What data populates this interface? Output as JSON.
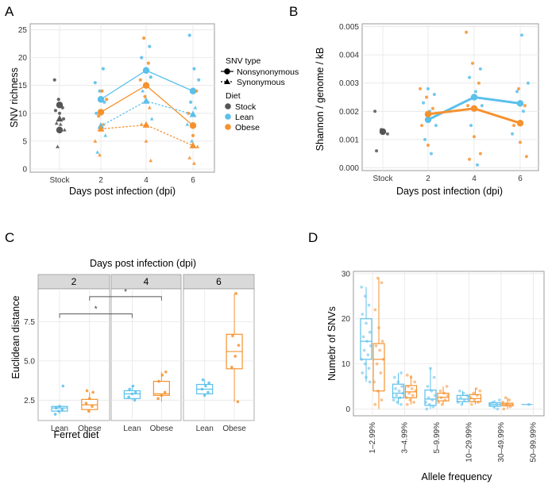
{
  "colors": {
    "stock": "#555555",
    "lean": "#5bc0eb",
    "obese": "#f5922f",
    "panel_bg": "#ffffff",
    "grid": "#e6e6e6",
    "strip_bg": "#d9d9d9"
  },
  "chart_data": [
    {
      "panel_label": "A",
      "type": "line",
      "xlabel": "Days post infection (dpi)",
      "ylabel": "SNV richness",
      "categories": [
        "Stock",
        "2",
        "4",
        "6"
      ],
      "yticks": [
        "0",
        "5",
        "10",
        "15",
        "20",
        "25"
      ],
      "ylim": [
        0,
        25.5
      ],
      "legend": {
        "title1": "SNV type",
        "items1": [
          "Nonsynonymous",
          "Synonymous"
        ],
        "title2": "Diet",
        "items2": [
          "Stock",
          "Lean",
          "Obese"
        ]
      },
      "series": [
        {
          "name": "Stock Nonsynonymous",
          "group": "stock",
          "shape": "circle",
          "values": [
            11.5,
            null,
            null,
            null
          ]
        },
        {
          "name": "Stock Nonsynonymous (2)",
          "group": "stock",
          "shape": "circle",
          "values": [
            7,
            null,
            null,
            null
          ]
        },
        {
          "name": "Stock Synonymous",
          "group": "stock",
          "shape": "triangle",
          "values": [
            9,
            null,
            null,
            null
          ]
        },
        {
          "name": "Lean Nonsynonymous",
          "group": "lean",
          "shape": "circle",
          "values": [
            null,
            12.5,
            17.7,
            14
          ]
        },
        {
          "name": "Obese Nonsynonymous",
          "group": "obese",
          "shape": "circle",
          "values": [
            null,
            10.2,
            15,
            7.8
          ]
        },
        {
          "name": "Lean Synonymous",
          "group": "lean",
          "shape": "triangle",
          "values": [
            null,
            7.7,
            12.2,
            9.8
          ]
        },
        {
          "name": "Obese Synonymous",
          "group": "obese",
          "shape": "triangle",
          "values": [
            null,
            7.2,
            7.9,
            4.2
          ]
        }
      ],
      "points": [
        {
          "g": "stock",
          "x": 0,
          "y": 16,
          "s": "c"
        },
        {
          "g": "stock",
          "x": 0,
          "y": 12.5,
          "s": "c"
        },
        {
          "g": "stock",
          "x": 0,
          "y": 11,
          "s": "c"
        },
        {
          "g": "stock",
          "x": 0,
          "y": 10.5,
          "s": "c"
        },
        {
          "g": "stock",
          "x": 0,
          "y": 10,
          "s": "c"
        },
        {
          "g": "stock",
          "x": 0,
          "y": 9,
          "s": "c"
        },
        {
          "g": "stock",
          "x": 0,
          "y": 8.2,
          "s": "t"
        },
        {
          "g": "stock",
          "x": 0,
          "y": 8,
          "s": "t"
        },
        {
          "g": "stock",
          "x": 0,
          "y": 7,
          "s": "t"
        },
        {
          "g": "stock",
          "x": 0,
          "y": 4,
          "s": "t"
        },
        {
          "g": "lean",
          "x": 1,
          "y": 18,
          "s": "c"
        },
        {
          "g": "lean",
          "x": 1,
          "y": 15.5,
          "s": "c"
        },
        {
          "g": "lean",
          "x": 1,
          "y": 14,
          "s": "c"
        },
        {
          "g": "lean",
          "x": 1,
          "y": 12,
          "s": "c"
        },
        {
          "g": "lean",
          "x": 1,
          "y": 10,
          "s": "c"
        },
        {
          "g": "lean",
          "x": 1,
          "y": 8,
          "s": "t"
        },
        {
          "g": "lean",
          "x": 1,
          "y": 6,
          "s": "t"
        },
        {
          "g": "lean",
          "x": 1,
          "y": 3,
          "s": "t"
        },
        {
          "g": "obese",
          "x": 1,
          "y": 14,
          "s": "c"
        },
        {
          "g": "obese",
          "x": 1,
          "y": 12.5,
          "s": "c"
        },
        {
          "g": "obese",
          "x": 1,
          "y": 9.5,
          "s": "c"
        },
        {
          "g": "obese",
          "x": 1,
          "y": 8,
          "s": "t"
        },
        {
          "g": "obese",
          "x": 1,
          "y": 5,
          "s": "t"
        },
        {
          "g": "obese",
          "x": 1,
          "y": 2.5,
          "s": "t"
        },
        {
          "g": "lean",
          "x": 2,
          "y": 22,
          "s": "c"
        },
        {
          "g": "lean",
          "x": 2,
          "y": 20,
          "s": "c"
        },
        {
          "g": "lean",
          "x": 2,
          "y": 18,
          "s": "c"
        },
        {
          "g": "lean",
          "x": 2,
          "y": 16.5,
          "s": "c"
        },
        {
          "g": "lean",
          "x": 2,
          "y": 14,
          "s": "t"
        },
        {
          "g": "lean",
          "x": 2,
          "y": 12,
          "s": "t"
        },
        {
          "g": "lean",
          "x": 2,
          "y": 9,
          "s": "t"
        },
        {
          "g": "obese",
          "x": 2,
          "y": 23.5,
          "s": "c"
        },
        {
          "g": "obese",
          "x": 2,
          "y": 19,
          "s": "c"
        },
        {
          "g": "obese",
          "x": 2,
          "y": 16,
          "s": "c"
        },
        {
          "g": "obese",
          "x": 2,
          "y": 13,
          "s": "c"
        },
        {
          "g": "obese",
          "x": 2,
          "y": 11,
          "s": "t"
        },
        {
          "g": "obese",
          "x": 2,
          "y": 8,
          "s": "t"
        },
        {
          "g": "obese",
          "x": 2,
          "y": 5,
          "s": "t"
        },
        {
          "g": "obese",
          "x": 2,
          "y": 1.5,
          "s": "t"
        },
        {
          "g": "lean",
          "x": 3,
          "y": 24,
          "s": "c"
        },
        {
          "g": "lean",
          "x": 3,
          "y": 18,
          "s": "c"
        },
        {
          "g": "lean",
          "x": 3,
          "y": 16,
          "s": "c"
        },
        {
          "g": "lean",
          "x": 3,
          "y": 12,
          "s": "c"
        },
        {
          "g": "lean",
          "x": 3,
          "y": 11,
          "s": "t"
        },
        {
          "g": "lean",
          "x": 3,
          "y": 8,
          "s": "t"
        },
        {
          "g": "lean",
          "x": 3,
          "y": 5,
          "s": "t"
        },
        {
          "g": "obese",
          "x": 3,
          "y": 14,
          "s": "c"
        },
        {
          "g": "obese",
          "x": 3,
          "y": 10,
          "s": "c"
        },
        {
          "g": "obese",
          "x": 3,
          "y": 6,
          "s": "c"
        },
        {
          "g": "obese",
          "x": 3,
          "y": 4,
          "s": "t"
        },
        {
          "g": "obese",
          "x": 3,
          "y": 2,
          "s": "t"
        },
        {
          "g": "obese",
          "x": 3,
          "y": 1,
          "s": "t"
        }
      ]
    },
    {
      "panel_label": "B",
      "type": "line",
      "xlabel": "Days post infection (dpi)",
      "ylabel": "Shannon / genome / kB",
      "categories": [
        "Stock",
        "2",
        "4",
        "6"
      ],
      "yticks": [
        "0.000",
        "0.001",
        "0.002",
        "0.003",
        "0.004",
        "0.005"
      ],
      "ylim": [
        -0.0001,
        0.0051
      ],
      "series": [
        {
          "name": "Stock",
          "group": "stock",
          "values": [
            0.00128,
            null,
            null,
            null
          ]
        },
        {
          "name": "Lean",
          "group": "lean",
          "values": [
            null,
            0.0017,
            0.0025,
            0.00228
          ]
        },
        {
          "name": "Obese",
          "group": "obese",
          "values": [
            null,
            0.0019,
            0.0021,
            0.00158
          ]
        }
      ],
      "points": [
        {
          "g": "stock",
          "x": 0,
          "y": 0.002
        },
        {
          "g": "stock",
          "x": 0,
          "y": 0.00135
        },
        {
          "g": "stock",
          "x": 0,
          "y": 0.0012
        },
        {
          "g": "stock",
          "x": 0,
          "y": 0.0006
        },
        {
          "g": "lean",
          "x": 1,
          "y": 0.0028
        },
        {
          "g": "lean",
          "x": 1,
          "y": 0.0026
        },
        {
          "g": "lean",
          "x": 1,
          "y": 0.0023
        },
        {
          "g": "lean",
          "x": 1,
          "y": 0.002
        },
        {
          "g": "lean",
          "x": 1,
          "y": 0.0015
        },
        {
          "g": "lean",
          "x": 1,
          "y": 0.001
        },
        {
          "g": "lean",
          "x": 1,
          "y": 0.0005
        },
        {
          "g": "obese",
          "x": 1,
          "y": 0.0028
        },
        {
          "g": "obese",
          "x": 1,
          "y": 0.0025
        },
        {
          "g": "obese",
          "x": 1,
          "y": 0.0021
        },
        {
          "g": "obese",
          "x": 1,
          "y": 0.0015
        },
        {
          "g": "obese",
          "x": 1,
          "y": 0.0008
        },
        {
          "g": "lean",
          "x": 2,
          "y": 0.0035
        },
        {
          "g": "lean",
          "x": 2,
          "y": 0.0032
        },
        {
          "g": "lean",
          "x": 2,
          "y": 0.0027
        },
        {
          "g": "lean",
          "x": 2,
          "y": 0.0022
        },
        {
          "g": "lean",
          "x": 2,
          "y": 0.0015
        },
        {
          "g": "lean",
          "x": 2,
          "y": 0.0001
        },
        {
          "g": "obese",
          "x": 2,
          "y": 0.0048
        },
        {
          "g": "obese",
          "x": 2,
          "y": 0.0037
        },
        {
          "g": "obese",
          "x": 2,
          "y": 0.003
        },
        {
          "g": "obese",
          "x": 2,
          "y": 0.0022
        },
        {
          "g": "obese",
          "x": 2,
          "y": 0.0011
        },
        {
          "g": "obese",
          "x": 2,
          "y": 0.0005
        },
        {
          "g": "obese",
          "x": 2,
          "y": 0.0003
        },
        {
          "g": "lean",
          "x": 3,
          "y": 0.0047
        },
        {
          "g": "lean",
          "x": 3,
          "y": 0.003
        },
        {
          "g": "lean",
          "x": 3,
          "y": 0.0027
        },
        {
          "g": "lean",
          "x": 3,
          "y": 0.002
        },
        {
          "g": "lean",
          "x": 3,
          "y": 0.0012
        },
        {
          "g": "obese",
          "x": 3,
          "y": 0.0028
        },
        {
          "g": "obese",
          "x": 3,
          "y": 0.0022
        },
        {
          "g": "obese",
          "x": 3,
          "y": 0.0015
        },
        {
          "g": "obese",
          "x": 3,
          "y": 0.0009
        },
        {
          "g": "obese",
          "x": 3,
          "y": 0.0004
        }
      ]
    },
    {
      "panel_label": "C",
      "type": "box",
      "title": "Days post infection (dpi)",
      "xlabel": "Ferret diet",
      "ylabel": "Euclidean distance",
      "facets": [
        "2",
        "4",
        "6"
      ],
      "categories": [
        "Lean",
        "Obese"
      ],
      "yticks": [
        "2.5",
        "5.0",
        "7.5"
      ],
      "ylim": [
        1.2,
        9.6
      ],
      "significance": [
        "*",
        "*"
      ],
      "boxes": [
        {
          "facet": "2",
          "diet": "Lean",
          "min": 1.6,
          "q1": 1.8,
          "median": 2.0,
          "q3": 2.1,
          "max": 2.2,
          "points": [
            1.6,
            1.8,
            1.9,
            2.0,
            2.1,
            3.4
          ]
        },
        {
          "facet": "2",
          "diet": "Obese",
          "min": 1.7,
          "q1": 1.9,
          "median": 2.2,
          "q3": 2.55,
          "max": 3.0,
          "points": [
            1.8,
            2.1,
            2.3,
            2.6,
            3.0,
            3.1
          ]
        },
        {
          "facet": "4",
          "diet": "Lean",
          "min": 2.5,
          "q1": 2.6,
          "median": 2.9,
          "q3": 3.1,
          "max": 3.4,
          "points": [
            2.5,
            2.7,
            2.9,
            3.0,
            3.2,
            3.4
          ]
        },
        {
          "facet": "4",
          "diet": "Obese",
          "min": 2.4,
          "q1": 2.8,
          "median": 2.9,
          "q3": 3.7,
          "max": 4.3,
          "points": [
            2.6,
            2.8,
            3.0,
            3.7,
            4.1,
            4.3
          ]
        },
        {
          "facet": "6",
          "diet": "Lean",
          "min": 2.8,
          "q1": 2.9,
          "median": 3.2,
          "q3": 3.5,
          "max": 3.8,
          "points": [
            2.8,
            3.0,
            3.2,
            3.4,
            3.6,
            3.8
          ]
        },
        {
          "facet": "6",
          "diet": "Obese",
          "min": 2.4,
          "q1": 4.5,
          "median": 5.6,
          "q3": 6.7,
          "max": 9.3,
          "points": [
            2.4,
            4.6,
            5.3,
            6.0,
            6.6,
            9.3
          ]
        }
      ]
    },
    {
      "panel_label": "D",
      "type": "box",
      "xlabel": "Allele frequency",
      "ylabel": "Numebr of SNVs",
      "categories": [
        "1–2.99%",
        "3–4.99%",
        "5–9.99%",
        "10–29.99%",
        "30–49.99%",
        "50–99.99%"
      ],
      "yticks": [
        "0",
        "10",
        "20",
        "30"
      ],
      "ylim": [
        -1.5,
        30.5
      ],
      "boxes": [
        {
          "cat": 0,
          "diet": "Lean",
          "min": 6,
          "q1": 11,
          "median": 15,
          "q3": 20,
          "max": 27,
          "points": [
            27,
            25,
            23,
            21,
            19,
            17,
            16,
            15,
            14,
            13,
            12,
            11,
            10,
            9,
            8,
            7,
            6
          ]
        },
        {
          "cat": 0,
          "diet": "Obese",
          "min": 0,
          "q1": 4,
          "median": 11,
          "q3": 14.5,
          "max": 29,
          "points": [
            29,
            28,
            22,
            18,
            15,
            14,
            13,
            11,
            10,
            8,
            6,
            4,
            2,
            1
          ]
        },
        {
          "cat": 1,
          "diet": "Lean",
          "min": 1,
          "q1": 2.5,
          "median": 3.5,
          "q3": 5.5,
          "max": 8,
          "points": [
            8,
            7,
            6,
            5,
            4.5,
            4,
            3.5,
            3,
            2.5,
            2,
            1.5,
            1
          ]
        },
        {
          "cat": 1,
          "diet": "Obese",
          "min": 1,
          "q1": 2.5,
          "median": 3.8,
          "q3": 5.2,
          "max": 7.5,
          "points": [
            7.5,
            7,
            6,
            5,
            4.5,
            4,
            3.5,
            3,
            2.5,
            2,
            1.5,
            1
          ]
        },
        {
          "cat": 2,
          "diet": "Lean",
          "min": 0,
          "q1": 0.8,
          "median": 2.2,
          "q3": 4.2,
          "max": 9,
          "points": [
            9,
            7,
            5,
            4,
            3,
            2.5,
            2,
            1.5,
            1,
            0.5,
            0
          ]
        },
        {
          "cat": 2,
          "diet": "Obese",
          "min": 1,
          "q1": 1.8,
          "median": 2.6,
          "q3": 3.5,
          "max": 5,
          "points": [
            5,
            4,
            3.5,
            3,
            2.5,
            2,
            1.5,
            1
          ]
        },
        {
          "cat": 3,
          "diet": "Lean",
          "min": 1,
          "q1": 1.6,
          "median": 2.2,
          "q3": 3,
          "max": 4,
          "points": [
            4,
            3.5,
            3,
            2.5,
            2,
            1.5,
            1
          ]
        },
        {
          "cat": 3,
          "diet": "Obese",
          "min": 1,
          "q1": 1.6,
          "median": 2.3,
          "q3": 3.2,
          "max": 4.5,
          "points": [
            4.5,
            4,
            3.5,
            3,
            2.5,
            2,
            1.5,
            1
          ]
        },
        {
          "cat": 4,
          "diet": "Lean",
          "min": 0,
          "q1": 0.6,
          "median": 1,
          "q3": 1.4,
          "max": 2,
          "points": [
            2,
            1.5,
            1,
            1,
            0.5,
            0
          ]
        },
        {
          "cat": 4,
          "diet": "Obese",
          "min": 0,
          "q1": 0.7,
          "median": 1,
          "q3": 1.3,
          "max": 2.5,
          "points": [
            2.5,
            2,
            1.5,
            1,
            0.5,
            0
          ]
        },
        {
          "cat": 5,
          "diet": "Lean",
          "min": 1,
          "q1": 1,
          "median": 1,
          "q3": 1,
          "max": 1,
          "points": [
            1
          ]
        }
      ]
    }
  ]
}
